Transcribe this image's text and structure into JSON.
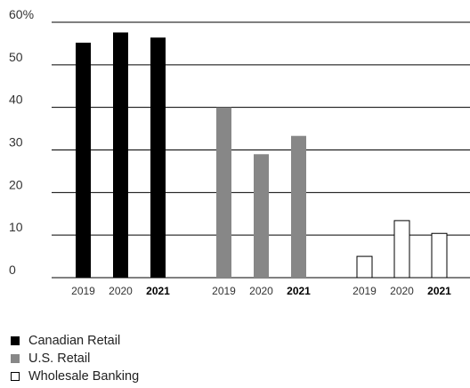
{
  "chart_data": {
    "type": "bar",
    "y_tick_labels": [
      "60%",
      "50",
      "40",
      "30",
      "20",
      "10",
      "0"
    ],
    "y_ticks": [
      60,
      50,
      40,
      30,
      20,
      10,
      0
    ],
    "ylim": [
      0,
      60
    ],
    "grid": true,
    "legend_position": "bottom-left",
    "groups": [
      {
        "name": "Canadian Retail",
        "color": "#000000",
        "outlined": false,
        "categories": [
          "2019",
          "2020",
          "2021"
        ],
        "values": [
          55.2,
          57.6,
          56.4
        ],
        "bold": [
          false,
          false,
          true
        ]
      },
      {
        "name": "U.S. Retail",
        "color": "#878787",
        "outlined": false,
        "categories": [
          "2019",
          "2020",
          "2021"
        ],
        "values": [
          40.0,
          29.0,
          33.3
        ],
        "bold": [
          false,
          false,
          true
        ]
      },
      {
        "name": "Wholesale Banking",
        "color": "#ffffff",
        "outlined": true,
        "categories": [
          "2019",
          "2020",
          "2021"
        ],
        "values": [
          5.0,
          13.4,
          10.4
        ],
        "bold": [
          false,
          false,
          true
        ]
      }
    ]
  },
  "legend": {
    "items": [
      {
        "label": "Canadian Retail",
        "color": "#000000",
        "outlined": false
      },
      {
        "label": "U.S. Retail",
        "color": "#878787",
        "outlined": false
      },
      {
        "label": "Wholesale Banking",
        "color": "#ffffff",
        "outlined": true
      }
    ]
  }
}
